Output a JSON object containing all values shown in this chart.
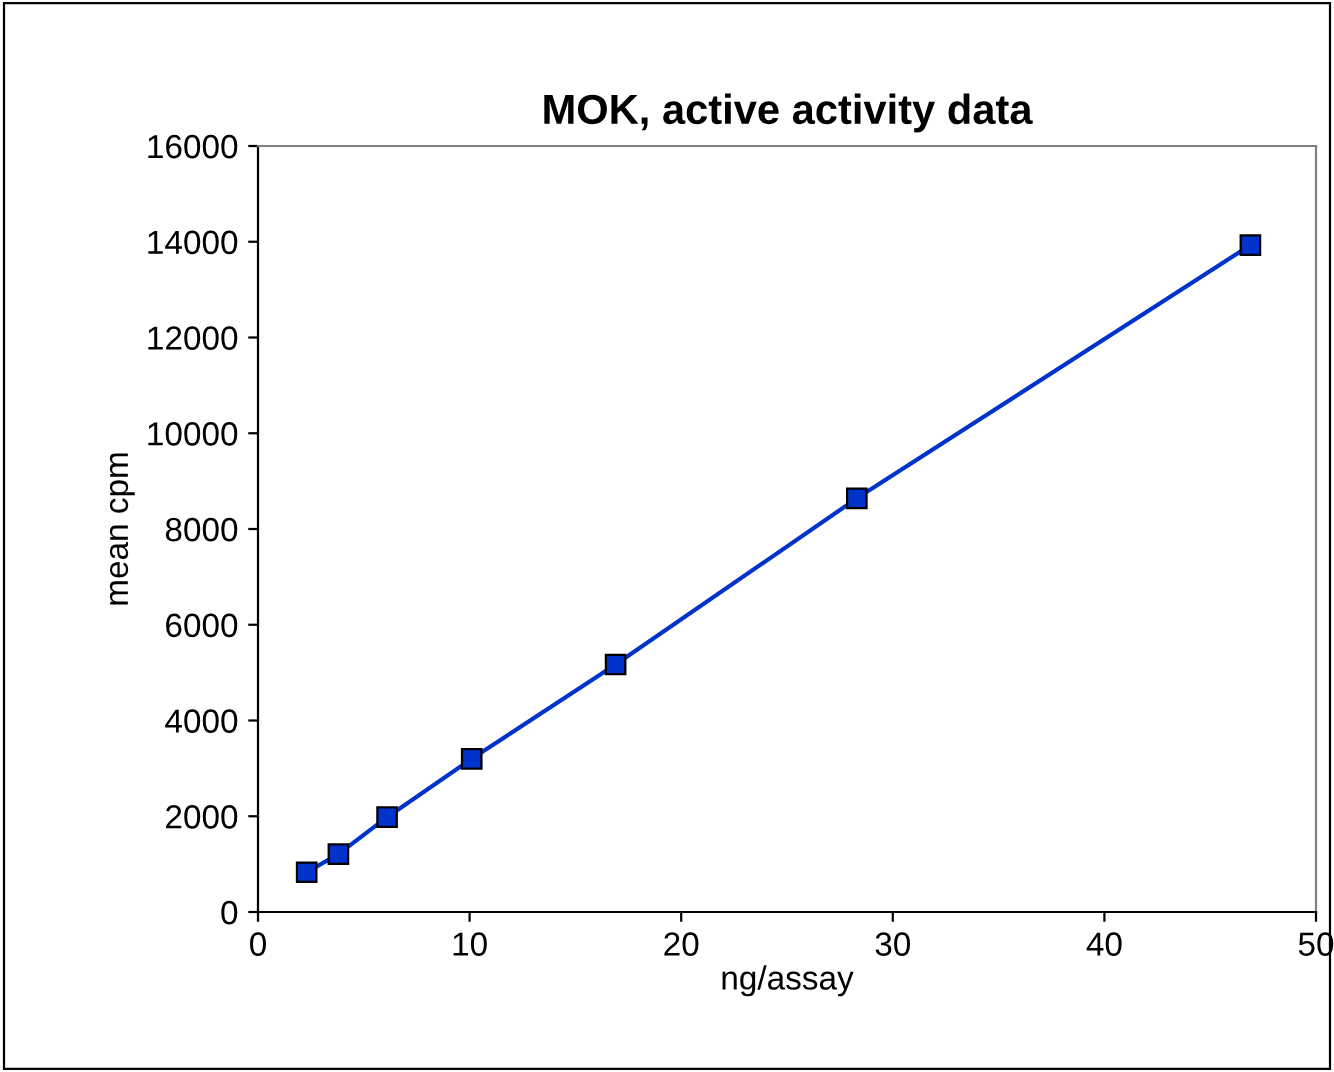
{
  "chart_data": {
    "type": "line",
    "title": "MOK, active activity data",
    "xlabel": "ng/assay",
    "ylabel": "mean cpm",
    "x": [
      2.3,
      3.8,
      6.1,
      10.1,
      16.9,
      28.3,
      46.9
    ],
    "series": [
      {
        "color": "#0033cc",
        "values": [
          830,
          1210,
          1980,
          3200,
          5170,
          8640,
          13930
        ]
      }
    ],
    "xlim": [
      0,
      50
    ],
    "xticks": [
      0,
      10,
      20,
      30,
      40,
      50
    ],
    "ylim": [
      0,
      16000
    ],
    "yticks": [
      0,
      2000,
      4000,
      6000,
      8000,
      10000,
      12000,
      14000,
      16000
    ],
    "grid": false,
    "legend": false,
    "marker": "square",
    "line_style": "solid"
  }
}
